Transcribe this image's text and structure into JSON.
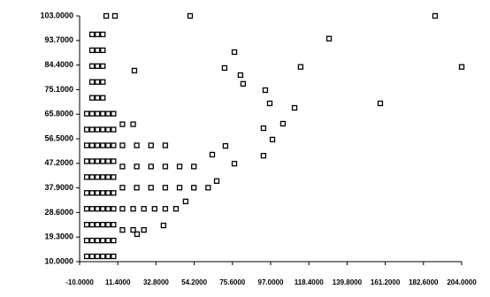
{
  "chart_data": {
    "type": "scatter",
    "color": "#000000",
    "xlim": [
      -10,
      204
    ],
    "ylim": [
      10,
      103
    ],
    "xticks": [
      {
        "value": -10,
        "label": "-10.0000"
      },
      {
        "value": 11.4,
        "label": "11.4000"
      },
      {
        "value": 32.8,
        "label": "32.8000"
      },
      {
        "value": 54.2,
        "label": "54.2000"
      },
      {
        "value": 75.6,
        "label": "75.6000"
      },
      {
        "value": 97,
        "label": "97.0000"
      },
      {
        "value": 118.4,
        "label": "118.4000"
      },
      {
        "value": 139.8,
        "label": "139.8000"
      },
      {
        "value": 161.2,
        "label": "161.2000"
      },
      {
        "value": 182.6,
        "label": "182.6000"
      },
      {
        "value": 204,
        "label": "204.0000"
      }
    ],
    "yticks": [
      {
        "value": 10,
        "label": "10.0000"
      },
      {
        "value": 19.3,
        "label": "19.3000"
      },
      {
        "value": 28.6,
        "label": "28.6000"
      },
      {
        "value": 37.9,
        "label": "37.9000"
      },
      {
        "value": 47.2,
        "label": "47.2000"
      },
      {
        "value": 56.5,
        "label": "56.5000"
      },
      {
        "value": 65.8,
        "label": "65.8000"
      },
      {
        "value": 75.1,
        "label": "75.1000"
      },
      {
        "value": 84.4,
        "label": "84.4000"
      },
      {
        "value": 93.7,
        "label": "93.7000"
      },
      {
        "value": 103,
        "label": "103.0000"
      }
    ],
    "x": [
      -6,
      -3,
      0,
      3,
      6,
      9,
      -6,
      -3,
      0,
      3,
      6,
      9,
      -6,
      -3,
      0,
      3,
      6,
      9,
      -6,
      -3,
      0,
      3,
      6,
      9,
      -6,
      -3,
      0,
      3,
      6,
      9,
      -6,
      -3,
      0,
      3,
      6,
      9,
      -6,
      -3,
      0,
      3,
      6,
      9,
      -6,
      -3,
      0,
      3,
      6,
      9,
      -6,
      -3,
      0,
      3,
      6,
      9,
      -6,
      -3,
      0,
      3,
      6,
      9,
      -3,
      0,
      3,
      -3,
      0,
      3,
      -3,
      0,
      3,
      -3,
      0,
      3,
      -3,
      0,
      3,
      14,
      20,
      26,
      32,
      38,
      44,
      14,
      22,
      30,
      38,
      46,
      54,
      62,
      14,
      22,
      30,
      38,
      46,
      54,
      14,
      22,
      30,
      38,
      14,
      20,
      26,
      14,
      20,
      4.9,
      9.8,
      51.9,
      189.1,
      129.7,
      204,
      113.8,
      20.7,
      158.4,
      96.5,
      110.4,
      93,
      76.7,
      71.2,
      80.1,
      94,
      81.6,
      103.9,
      98,
      93,
      37,
      22.2,
      49.4,
      66.8,
      76.7,
      64.3,
      71.7
    ],
    "y": [
      12,
      12,
      12,
      12,
      12,
      12,
      18,
      18,
      18,
      18,
      18,
      18,
      24,
      24,
      24,
      24,
      24,
      24,
      30,
      30,
      30,
      30,
      30,
      30,
      36,
      36,
      36,
      36,
      36,
      36,
      42,
      42,
      42,
      42,
      42,
      42,
      48,
      48,
      48,
      48,
      48,
      48,
      54,
      54,
      54,
      54,
      54,
      54,
      60,
      60,
      60,
      60,
      60,
      60,
      66,
      66,
      66,
      66,
      66,
      66,
      72,
      72,
      72,
      78,
      78,
      78,
      84,
      84,
      84,
      90,
      90,
      90,
      96,
      96,
      96,
      30,
      30,
      30,
      30,
      30,
      30,
      38,
      38,
      38,
      38,
      38,
      38,
      38,
      46,
      46,
      46,
      46,
      46,
      46,
      54,
      54,
      54,
      54,
      22,
      22,
      22,
      62,
      62,
      103,
      103,
      103,
      103,
      94.4,
      83.7,
      83.7,
      82.3,
      69.9,
      69.9,
      68.2,
      60.5,
      89.3,
      83.3,
      80.6,
      74.9,
      77.3,
      62.2,
      56.2,
      50.1,
      23.7,
      20.4,
      32.8,
      40.5,
      47.1,
      50.5,
      53.8
    ]
  }
}
